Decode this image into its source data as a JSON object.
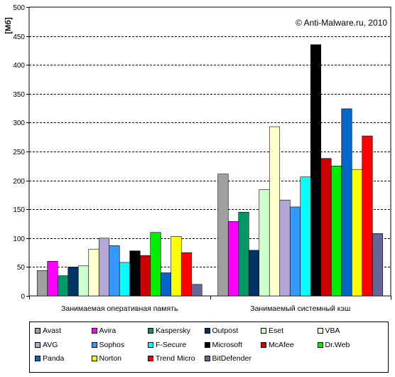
{
  "chart_data": {
    "type": "bar",
    "title": "",
    "ylabel": "[Мб]",
    "watermark": "© Anti-Malware.ru,  2010",
    "ylim": [
      0,
      500
    ],
    "yticks": [
      0,
      50,
      100,
      150,
      200,
      250,
      300,
      350,
      400,
      450,
      500
    ],
    "grid": true,
    "legend_position": "bottom",
    "categories": [
      "Занимаемая оперативная память",
      "Занимаемый системный кэш"
    ],
    "series": [
      {
        "name": "Avast",
        "color": "#a0a0a0",
        "values": [
          44,
          211
        ]
      },
      {
        "name": "Avira",
        "color": "#ff00ff",
        "values": [
          60,
          129
        ]
      },
      {
        "name": "Kaspersky",
        "color": "#009966",
        "values": [
          35,
          145
        ]
      },
      {
        "name": "Outpost",
        "color": "#003366",
        "values": [
          50,
          79
        ]
      },
      {
        "name": "Eset",
        "color": "#ccffcc",
        "values": [
          52,
          184
        ]
      },
      {
        "name": "VBA",
        "color": "#ffffcc",
        "values": [
          81,
          293
        ]
      },
      {
        "name": "AVG",
        "color": "#b4a7d6",
        "values": [
          100,
          166
        ]
      },
      {
        "name": "Sophos",
        "color": "#3399ff",
        "values": [
          87,
          154
        ]
      },
      {
        "name": "F-Secure",
        "color": "#00ffff",
        "values": [
          58,
          206
        ]
      },
      {
        "name": "Microsoft",
        "color": "#000000",
        "values": [
          78,
          435
        ]
      },
      {
        "name": "McAfee",
        "color": "#cc0000",
        "values": [
          70,
          238
        ]
      },
      {
        "name": "Dr.Web",
        "color": "#00ee00",
        "values": [
          110,
          225
        ]
      },
      {
        "name": "Panda",
        "color": "#0066cc",
        "values": [
          40,
          324
        ]
      },
      {
        "name": "Norton",
        "color": "#ffff00",
        "values": [
          103,
          219
        ]
      },
      {
        "name": "Trend Micro",
        "color": "#ff0000",
        "values": [
          75,
          277
        ]
      },
      {
        "name": "BitDefender",
        "color": "#666699",
        "values": [
          20,
          108
        ]
      }
    ]
  }
}
